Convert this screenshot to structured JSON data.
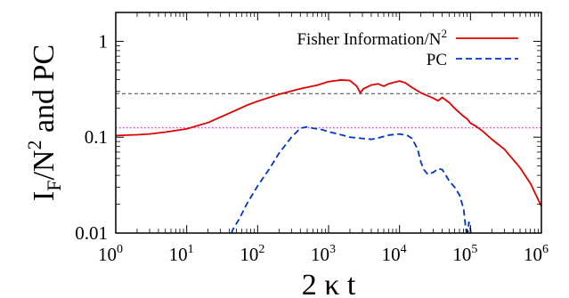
{
  "chart_data": {
    "type": "line",
    "xlabel": "2 κ t",
    "ylabel_main": "I",
    "ylabel_sub": "F",
    "ylabel_rest": "/N",
    "ylabel_sup": "2",
    "ylabel_tail": " and PC",
    "x_scale": "log",
    "y_scale": "log",
    "xlim": [
      1,
      1000000
    ],
    "ylim": [
      0.01,
      2
    ],
    "grid": false,
    "legend_position": "top-right",
    "x_ticks": [
      {
        "value": 1,
        "base": "10",
        "exp": "0"
      },
      {
        "value": 10,
        "base": "10",
        "exp": "1"
      },
      {
        "value": 100,
        "base": "10",
        "exp": "2"
      },
      {
        "value": 1000,
        "base": "10",
        "exp": "3"
      },
      {
        "value": 10000,
        "base": "10",
        "exp": "4"
      },
      {
        "value": 100000,
        "base": "10",
        "exp": "5"
      },
      {
        "value": 1000000,
        "base": "10",
        "exp": "6"
      }
    ],
    "y_ticks": [
      {
        "value": 0.01,
        "label": "0.01"
      },
      {
        "value": 0.1,
        "label": "0.1"
      },
      {
        "value": 1,
        "label": "1"
      }
    ],
    "series": [
      {
        "name_main": "Fisher Information/N",
        "name_sup": "2",
        "color": "#e00000",
        "dash": "solid",
        "points": [
          [
            1,
            0.104
          ],
          [
            2,
            0.106
          ],
          [
            3,
            0.108
          ],
          [
            5,
            0.113
          ],
          [
            10,
            0.122
          ],
          [
            20,
            0.142
          ],
          [
            40,
            0.178
          ],
          [
            70,
            0.215
          ],
          [
            100,
            0.237
          ],
          [
            200,
            0.28
          ],
          [
            400,
            0.32
          ],
          [
            700,
            0.35
          ],
          [
            1000,
            0.38
          ],
          [
            1500,
            0.395
          ],
          [
            2000,
            0.39
          ],
          [
            2500,
            0.34
          ],
          [
            2800,
            0.29
          ],
          [
            3100,
            0.32
          ],
          [
            4000,
            0.35
          ],
          [
            5000,
            0.36
          ],
          [
            6000,
            0.34
          ],
          [
            7000,
            0.36
          ],
          [
            8000,
            0.37
          ],
          [
            10000,
            0.385
          ],
          [
            12000,
            0.37
          ],
          [
            15000,
            0.33
          ],
          [
            20000,
            0.29
          ],
          [
            25000,
            0.27
          ],
          [
            30000,
            0.255
          ],
          [
            35000,
            0.24
          ],
          [
            40000,
            0.26
          ],
          [
            50000,
            0.23
          ],
          [
            60000,
            0.2
          ],
          [
            70000,
            0.18
          ],
          [
            80000,
            0.165
          ],
          [
            90000,
            0.155
          ],
          [
            100000,
            0.14
          ],
          [
            120000,
            0.13
          ],
          [
            150000,
            0.115
          ],
          [
            200000,
            0.095
          ],
          [
            300000,
            0.075
          ],
          [
            500000,
            0.048
          ],
          [
            700000,
            0.033
          ],
          [
            1000000,
            0.019
          ]
        ]
      },
      {
        "name_main": "PC",
        "name_sup": "",
        "color": "#0033cc",
        "dash": "dashed",
        "points": [
          [
            38,
            0.008
          ],
          [
            45,
            0.011
          ],
          [
            55,
            0.014
          ],
          [
            70,
            0.02
          ],
          [
            100,
            0.031
          ],
          [
            150,
            0.048
          ],
          [
            200,
            0.068
          ],
          [
            300,
            0.1
          ],
          [
            400,
            0.124
          ],
          [
            500,
            0.128
          ],
          [
            600,
            0.124
          ],
          [
            800,
            0.12
          ],
          [
            1000,
            0.114
          ],
          [
            1500,
            0.106
          ],
          [
            2000,
            0.1
          ],
          [
            3000,
            0.097
          ],
          [
            4000,
            0.095
          ],
          [
            5000,
            0.098
          ],
          [
            7000,
            0.105
          ],
          [
            10000,
            0.108
          ],
          [
            13000,
            0.104
          ],
          [
            15000,
            0.097
          ],
          [
            18000,
            0.075
          ],
          [
            20000,
            0.055
          ],
          [
            22000,
            0.046
          ],
          [
            25000,
            0.041
          ],
          [
            30000,
            0.043
          ],
          [
            35000,
            0.047
          ],
          [
            40000,
            0.046
          ],
          [
            45000,
            0.04
          ],
          [
            50000,
            0.035
          ],
          [
            60000,
            0.03
          ],
          [
            70000,
            0.025
          ],
          [
            80000,
            0.018
          ],
          [
            85000,
            0.012
          ],
          [
            90000,
            0.009
          ],
          [
            95000,
            0.013
          ],
          [
            100000,
            0.011
          ],
          [
            105000,
            0.008
          ]
        ]
      }
    ],
    "reference_lines": [
      {
        "y": 0.285,
        "color": "#404040",
        "dash": "dashed"
      },
      {
        "y": 0.125,
        "color": "#cc00cc",
        "dash": "dotted"
      }
    ]
  }
}
